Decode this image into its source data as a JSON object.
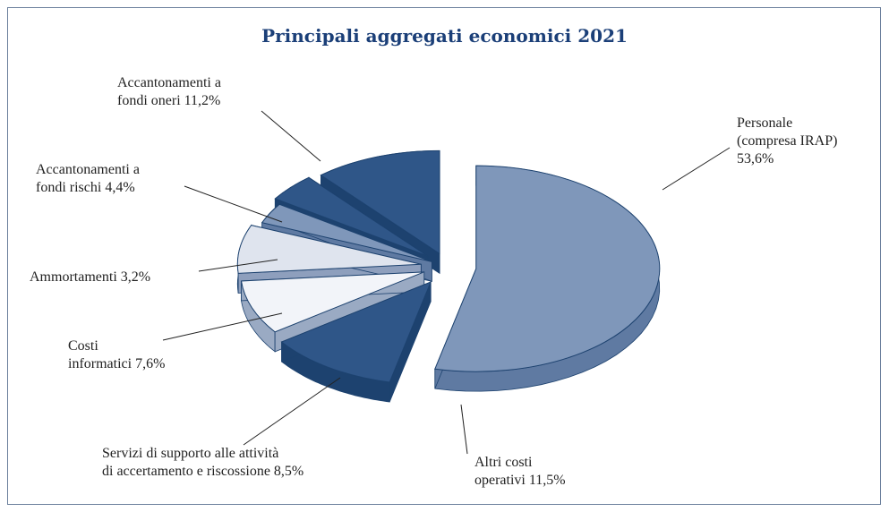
{
  "colors": {
    "dark": "#2f5688",
    "dark_side": "#1d426f",
    "mid": "#7f97ba",
    "mid_side": "#5f7aa2",
    "light": "#dfe4ee",
    "lightest": "#f2f4f9",
    "title": "#1b3f78"
  },
  "chart_data": {
    "type": "pie",
    "title": "Principali aggregati economici 2021",
    "slices": [
      {
        "name": "Personale (compresa IRAP)",
        "value": 53.6,
        "label": "Personale\n(compresa IRAP)\n53,6%"
      },
      {
        "name": "Altri costi operativi",
        "value": 11.5,
        "label": "Altri costi\noperativi 11,5%"
      },
      {
        "name": "Servizi di supporto alle attività di accertamento e riscossione",
        "value": 8.5,
        "label": "Servizi di supporto alle attività\ndi accertamento e riscossione 8,5%"
      },
      {
        "name": "Costi informatici",
        "value": 7.6,
        "label": "Costi\ninformatici 7,6%"
      },
      {
        "name": "Ammortamenti",
        "value": 3.2,
        "label": "Ammortamenti 3,2%"
      },
      {
        "name": "Accantonamenti a fondi rischi",
        "value": 4.4,
        "label": "Accantonamenti a\nfondi rischi 4,4%"
      },
      {
        "name": "Accantonamenti a fondi oneri",
        "value": 11.2,
        "label": "Accantonamenti a\nfondi oneri 11,2%"
      }
    ]
  }
}
